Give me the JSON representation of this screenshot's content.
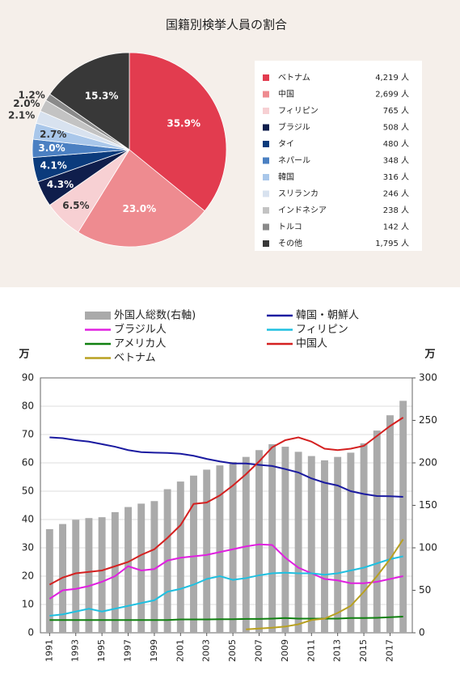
{
  "chart_data": [
    {
      "type": "pie",
      "title": "国籍別検挙人員の割合",
      "categories": [
        "ベトナム",
        "中国",
        "フィリピン",
        "ブラジル",
        "タイ",
        "ネパール",
        "韓国",
        "スリランカ",
        "インドネシア",
        "トルコ",
        "その他"
      ],
      "values": [
        35.9,
        23.0,
        6.5,
        4.3,
        4.1,
        3.0,
        2.7,
        2.1,
        2.0,
        1.2,
        15.3
      ],
      "value_labels": [
        "35.9%",
        "23.0%",
        "6.5%",
        "4.3%",
        "4.1%",
        "3.0%",
        "2.7%",
        "2.1%",
        "2.0%",
        "1.2%",
        "15.3%"
      ],
      "legend_values": [
        "4,219 人",
        "2,699 人",
        "765 人",
        "508 人",
        "480 人",
        "348 人",
        "316 人",
        "246 人",
        "238 人",
        "142 人",
        "1,795 人"
      ],
      "colors": [
        "#e23c4f",
        "#ee8b90",
        "#f7d0d3",
        "#0f1e4c",
        "#0b3b7c",
        "#4b80c2",
        "#a9c7ea",
        "#d8e2ef",
        "#c3c3c3",
        "#8a8a8a",
        "#383838"
      ]
    },
    {
      "type": "combo",
      "ylabel": "万",
      "y2label": "万",
      "x": [
        1991,
        1992,
        1993,
        1994,
        1995,
        1996,
        1997,
        1998,
        1999,
        2000,
        2001,
        2002,
        2003,
        2004,
        2005,
        2006,
        2007,
        2008,
        2009,
        2010,
        2011,
        2012,
        2013,
        2014,
        2015,
        2016,
        2017,
        2018
      ],
      "xlim": [
        1990.3,
        2018.7
      ],
      "xticks": [
        1991,
        1993,
        1995,
        1997,
        1999,
        2001,
        2003,
        2005,
        2007,
        2009,
        2011,
        2013,
        2015,
        2017
      ],
      "ylim": [
        0,
        90
      ],
      "yticks": [
        0,
        10,
        20,
        30,
        40,
        50,
        60,
        70,
        80,
        90
      ],
      "y2lim": [
        0,
        300
      ],
      "y2ticks": [
        0,
        50,
        100,
        150,
        200,
        250,
        300
      ],
      "grid": true,
      "series": [
        {
          "name": "外国人総数(右軸)",
          "type": "bar",
          "axis": "y2",
          "color": "#aaaaaa",
          "values": [
            122,
            128,
            133,
            135,
            136,
            142,
            148,
            152,
            155,
            169,
            178,
            185,
            192,
            197,
            201,
            207,
            215,
            222,
            219,
            213,
            208,
            203,
            207,
            212,
            223,
            238,
            256,
            273
          ]
        },
        {
          "name": "韓国・朝鮮人",
          "type": "line",
          "color": "#1a1aa0",
          "values": [
            69,
            68.7,
            68,
            67.5,
            66.6,
            65.7,
            64.5,
            63.8,
            63.6,
            63.5,
            63.2,
            62.5,
            61.4,
            60.5,
            59.8,
            59.8,
            59.3,
            58.9,
            57.8,
            56.6,
            54.5,
            53,
            52,
            50,
            49,
            48.3,
            48.2,
            48
          ]
        },
        {
          "name": "ブラジル人",
          "type": "line",
          "color": "#e020e0",
          "values": [
            12,
            15,
            15.5,
            16.5,
            18,
            20,
            23.5,
            22,
            22.5,
            25.5,
            26.5,
            27,
            27.5,
            28.5,
            29.5,
            30.5,
            31.2,
            31,
            26.5,
            23,
            21,
            19,
            18.5,
            17.5,
            17.5,
            18,
            19,
            20
          ]
        },
        {
          "name": "フィリピン",
          "type": "line",
          "color": "#20c0e0",
          "values": [
            6,
            6.5,
            7.5,
            8.5,
            7.5,
            8.5,
            9.5,
            10.5,
            11.5,
            14.5,
            15.5,
            17,
            19,
            20,
            18.7,
            19.3,
            20.3,
            21,
            21.2,
            21,
            21,
            20.5,
            21,
            22,
            23,
            24.5,
            26,
            27
          ]
        },
        {
          "name": "アメリカ人",
          "type": "line",
          "color": "#108010",
          "values": [
            4.5,
            4.5,
            4.5,
            4.5,
            4.5,
            4.5,
            4.5,
            4.5,
            4.5,
            4.5,
            4.7,
            4.7,
            4.7,
            4.8,
            4.8,
            4.9,
            4.9,
            5,
            5.2,
            5,
            5,
            5,
            5,
            5.2,
            5.2,
            5.3,
            5.5,
            5.7
          ]
        },
        {
          "name": "中国人",
          "type": "line",
          "color": "#d42020",
          "values": [
            17,
            19.5,
            21,
            21.5,
            22,
            23.5,
            25,
            27.5,
            29.5,
            33.5,
            38,
            45.5,
            46,
            48.5,
            52,
            56,
            60.5,
            65.5,
            68,
            69,
            67.5,
            65,
            64.5,
            65,
            66,
            69.5,
            73,
            76
          ]
        },
        {
          "name": "ベトナム",
          "type": "line",
          "color": "#b8a020",
          "values": [
            null,
            null,
            null,
            null,
            null,
            null,
            null,
            null,
            null,
            null,
            null,
            null,
            null,
            null,
            null,
            1.2,
            1.5,
            1.8,
            2.2,
            3,
            4.5,
            5,
            7,
            9.5,
            14.5,
            20,
            26,
            33
          ]
        }
      ]
    }
  ]
}
